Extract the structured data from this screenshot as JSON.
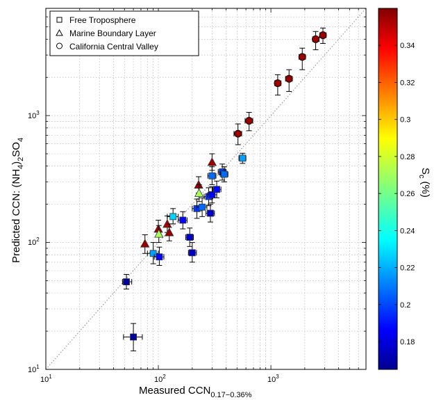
{
  "chart_data": {
    "type": "scatter",
    "xlabel": "Measured CCN",
    "xlabel_sub": "0.17−0.36%",
    "ylabel": "Predicted CCN: (NH",
    "ylabel_sub1": "4",
    "ylabel_mid": ")",
    "ylabel_sub2": "2",
    "ylabel_end": "SO",
    "ylabel_sub3": "4",
    "x_scale": "log",
    "y_scale": "log",
    "xlim": [
      10,
      7000
    ],
    "ylim": [
      10,
      7000
    ],
    "grid": true,
    "one_to_one_line": true,
    "legend_position": "top-left",
    "legend": [
      {
        "marker": "square",
        "label": "Free Troposphere"
      },
      {
        "marker": "triangle",
        "label": "Marine Boundary Layer"
      },
      {
        "marker": "circle",
        "label": "California Central Valley"
      }
    ],
    "x_ticks": [
      {
        "base": "10",
        "exp": "1"
      },
      {
        "base": "10",
        "exp": "2"
      },
      {
        "base": "10",
        "exp": "3"
      }
    ],
    "y_ticks": [
      {
        "base": "10",
        "exp": "1"
      },
      {
        "base": "10",
        "exp": "2"
      },
      {
        "base": "10",
        "exp": "3"
      }
    ],
    "colorbar": {
      "label": "S",
      "label_sub": "c",
      "label_unit": "(%)",
      "range": [
        0.165,
        0.36
      ],
      "ticks": [
        "0.18",
        "0.2",
        "0.22",
        "0.24",
        "0.26",
        "0.28",
        "0.3",
        "0.32",
        "0.34"
      ],
      "colormap": "jet"
    },
    "series": [
      {
        "name": "Free Troposphere",
        "marker": "square",
        "points": [
          {
            "x": 52,
            "y": 49,
            "sc": 0.17,
            "xerr": [
              48,
              58
            ],
            "yerr": [
              43,
              56
            ]
          },
          {
            "x": 60,
            "y": 18,
            "sc": 0.17,
            "xerr": [
              49,
              72
            ],
            "yerr": [
              14,
              23
            ]
          },
          {
            "x": 90,
            "y": 82,
            "sc": 0.22,
            "xerr": [
              80,
              100
            ],
            "yerr": [
              68,
              100
            ]
          },
          {
            "x": 102,
            "y": 77,
            "sc": 0.19,
            "xerr": [
              92,
              112
            ],
            "yerr": [
              66,
              92
            ]
          },
          {
            "x": 135,
            "y": 160,
            "sc": 0.23,
            "xerr": [
              120,
              150
            ],
            "yerr": [
              140,
              185
            ]
          },
          {
            "x": 165,
            "y": 150,
            "sc": 0.19,
            "xerr": [
              150,
              180
            ],
            "yerr": [
              128,
              175
            ]
          },
          {
            "x": 190,
            "y": 110,
            "sc": 0.18,
            "xerr": [
              175,
              205
            ],
            "yerr": [
              93,
              130
            ]
          },
          {
            "x": 200,
            "y": 83,
            "sc": 0.18,
            "xerr": [
              185,
              218
            ],
            "yerr": [
              70,
              100
            ]
          },
          {
            "x": 220,
            "y": 185,
            "sc": 0.2,
            "xerr": [
              200,
              240
            ],
            "yerr": [
              155,
              220
            ]
          },
          {
            "x": 245,
            "y": 190,
            "sc": 0.21,
            "xerr": [
              220,
              270
            ],
            "yerr": [
              160,
              225
            ]
          },
          {
            "x": 280,
            "y": 230,
            "sc": 0.2,
            "xerr": [
              255,
              305
            ],
            "yerr": [
              195,
              270
            ]
          },
          {
            "x": 300,
            "y": 335,
            "sc": 0.21,
            "xerr": [
              275,
              325
            ],
            "yerr": [
              285,
              395
            ]
          },
          {
            "x": 290,
            "y": 170,
            "sc": 0.18,
            "xerr": [
              265,
              315
            ],
            "yerr": [
              145,
              200
            ]
          },
          {
            "x": 300,
            "y": 238,
            "sc": 0.19,
            "xerr": [
              275,
              330
            ],
            "yerr": [
              205,
              275
            ]
          },
          {
            "x": 330,
            "y": 262,
            "sc": 0.19,
            "xerr": [
              305,
              360
            ],
            "yerr": [
              225,
              305
            ]
          },
          {
            "x": 370,
            "y": 360,
            "sc": 0.2,
            "xerr": [
              340,
              400
            ],
            "yerr": [
              310,
              415
            ]
          },
          {
            "x": 385,
            "y": 345,
            "sc": 0.21,
            "xerr": [
              355,
              415
            ],
            "yerr": [
              300,
              395
            ]
          },
          {
            "x": 560,
            "y": 462,
            "sc": 0.22,
            "xerr": [
              520,
              600
            ],
            "yerr": [
              420,
              505
            ]
          }
        ]
      },
      {
        "name": "Marine Boundary Layer",
        "marker": "triangle",
        "points": [
          {
            "x": 76,
            "y": 98,
            "sc": 0.355,
            "yerr": [
              82,
              115
            ]
          },
          {
            "x": 100,
            "y": 128,
            "sc": 0.355,
            "yerr": [
              110,
              150
            ]
          },
          {
            "x": 101,
            "y": 117,
            "sc": 0.27,
            "yerr": [
              100,
              136
            ]
          },
          {
            "x": 120,
            "y": 140,
            "sc": 0.35,
            "yerr": [
              120,
              162
            ]
          },
          {
            "x": 125,
            "y": 120,
            "sc": 0.355,
            "yerr": [
              103,
              140
            ]
          },
          {
            "x": 228,
            "y": 285,
            "sc": 0.355,
            "yerr": [
              245,
              330
            ]
          },
          {
            "x": 230,
            "y": 245,
            "sc": 0.27,
            "yerr": [
              210,
              285
            ]
          },
          {
            "x": 300,
            "y": 430,
            "sc": 0.355,
            "yerr": [
              370,
              500
            ]
          }
        ]
      },
      {
        "name": "California Central Valley",
        "marker": "circle",
        "points": [
          {
            "x": 510,
            "y": 720,
            "sc": 0.355,
            "xerr": [
              470,
              550
            ],
            "yerr": [
              590,
              860
            ]
          },
          {
            "x": 640,
            "y": 910,
            "sc": 0.355,
            "xerr": [
              590,
              690
            ],
            "yerr": [
              760,
              1060
            ]
          },
          {
            "x": 1150,
            "y": 1800,
            "sc": 0.355,
            "xerr": [
              1080,
              1230
            ],
            "yerr": [
              1450,
              2100
            ]
          },
          {
            "x": 1450,
            "y": 1950,
            "sc": 0.355,
            "xerr": [
              1350,
              1550
            ],
            "yerr": [
              1550,
              2300
            ]
          },
          {
            "x": 1900,
            "y": 2900,
            "sc": 0.355,
            "xerr": [
              1780,
              2030
            ],
            "yerr": [
              2300,
              3400
            ]
          },
          {
            "x": 2500,
            "y": 4000,
            "sc": 0.355,
            "xerr": [
              2350,
              2680
            ],
            "yerr": [
              3300,
              4600
            ]
          },
          {
            "x": 2900,
            "y": 4300,
            "sc": 0.355,
            "xerr": [
              2720,
              3100
            ],
            "yerr": [
              3700,
              4900
            ]
          }
        ]
      }
    ]
  }
}
